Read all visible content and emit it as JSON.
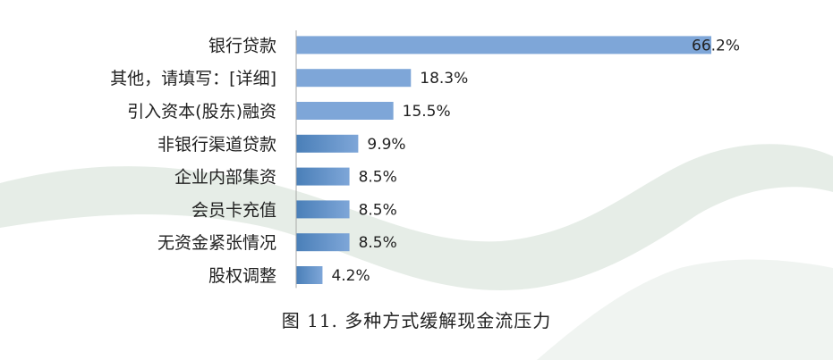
{
  "caption": "图 11.  多种方式缓解现金流压力",
  "colors": {
    "bar_light": "#7ea6d8",
    "bar_dark": "#4a7fb8",
    "background_shape": "#e3ebe5"
  },
  "chart_data": {
    "type": "bar",
    "orientation": "horizontal",
    "title": "",
    "xlabel": "",
    "ylabel": "",
    "xlim": [
      0,
      70
    ],
    "grid": false,
    "legend": "none",
    "categories": [
      "银行贷款",
      "其他，请填写：[详细]",
      "引入资本(股东)融资",
      "非银行渠道贷款",
      "企业内部集资",
      "会员卡充值",
      "无资金紧张情况",
      "股权调整"
    ],
    "values": [
      66.2,
      18.3,
      15.5,
      9.9,
      8.5,
      8.5,
      8.5,
      4.2
    ],
    "value_labels": [
      "66.2%",
      "18.3%",
      "15.5%",
      "9.9%",
      "8.5%",
      "8.5%",
      "8.5%",
      "4.2%"
    ]
  }
}
